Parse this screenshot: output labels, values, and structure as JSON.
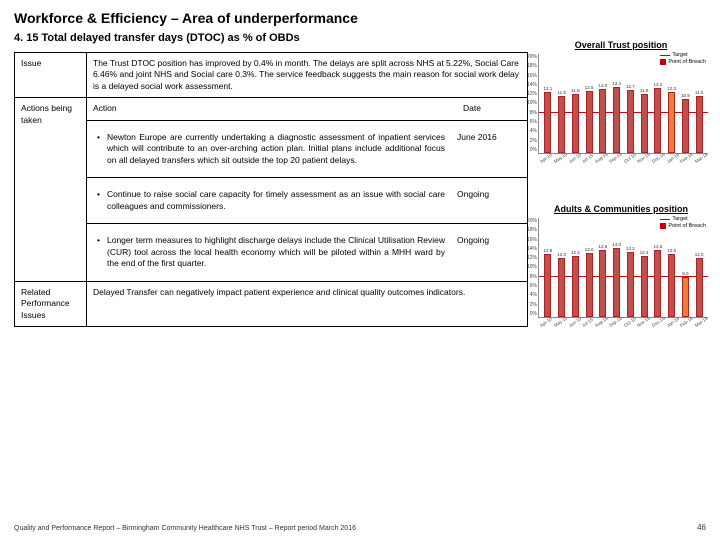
{
  "title": "Workforce & Efficiency – Area of underperformance",
  "subtitle": "4. 15 Total delayed transfer days (DTOC) as % of OBDs",
  "table": {
    "issue_label": "Issue",
    "issue_text": "The Trust DTOC position has improved by 0.4% in month. The delays are split across NHS at 5.22%, Social Care 6.46% and joint NHS and Social care 0.3%. The service feedback suggests the main reason for social work delay is a delayed social work assessment.",
    "actions_label": "Actions being taken",
    "action_header": "Action",
    "date_header": "Date",
    "actions": [
      {
        "text": "Newton Europe are currently undertaking a diagnostic assessment of inpatient services which will contribute to an over-arching action plan. Initial plans include additional focus on all delayed transfers which sit outside the top 20 patient delays.",
        "date": "June 2016"
      },
      {
        "text": "Continue to raise social care capacity for timely assessment as an issue with social care colleagues and commissioners.",
        "date": "Ongoing"
      },
      {
        "text": "Longer term measures to highlight discharge delays include the Clinical Utilisation Review (CUR) tool across the local health economy which will be piloted within a MHH ward by the end of the first quarter.",
        "date": "Ongoing"
      }
    ],
    "related_label": "Related Performance Issues",
    "related_text": "Delayed Transfer can negatively impact patient experience and clinical quality outcomes indicators."
  },
  "charts": {
    "legend_target": "Target",
    "legend_series": "Point of Breach",
    "chart1": {
      "title": "Overall Trust position",
      "target_pct": 40,
      "yticks": [
        "20%",
        "18%",
        "16%",
        "14%",
        "12%",
        "10%",
        "8%",
        "6%",
        "4%",
        "2%",
        "0%"
      ],
      "months": [
        "Apr-15",
        "May-15",
        "Jun-15",
        "Jul-15",
        "Aug-15",
        "Sep-15",
        "Oct-15",
        "Nov-15",
        "Dec-15",
        "Jan-16",
        "Feb-16",
        "Mar-16"
      ],
      "values": [
        62,
        58,
        60,
        63,
        65,
        67,
        64,
        60,
        66,
        62,
        55,
        58
      ],
      "labels": [
        "12.1",
        "11.5",
        "11.9",
        "12.5",
        "13.0",
        "13.4",
        "12.7",
        "11.9",
        "13.2",
        "12.3",
        "10.9",
        "11.5"
      ],
      "colors": [
        "#c0504d",
        "#c0504d",
        "#c0504d",
        "#c0504d",
        "#c0504d",
        "#c0504d",
        "#c0504d",
        "#c0504d",
        "#c0504d",
        "#ed7d31",
        "#c0504d",
        "#c0504d"
      ]
    },
    "chart2": {
      "title": "Adults & Communities position",
      "target_pct": 40,
      "yticks": [
        "20%",
        "18%",
        "16%",
        "14%",
        "12%",
        "10%",
        "8%",
        "6%",
        "4%",
        "2%",
        "0%"
      ],
      "months": [
        "Apr-15",
        "May-15",
        "Jun-15",
        "Jul-15",
        "Aug-15",
        "Sep-15",
        "Oct-15",
        "Nov-15",
        "Dec-15",
        "Jan-16",
        "Feb-16",
        "Mar-16"
      ],
      "values": [
        64,
        60,
        62,
        65,
        68,
        70,
        66,
        62,
        68,
        64,
        40,
        60
      ],
      "labels": [
        "12.8",
        "12.0",
        "12.4",
        "13.0",
        "13.6",
        "14.0",
        "13.2",
        "12.4",
        "13.6",
        "12.8",
        "8.0",
        "12.0"
      ],
      "colors": [
        "#c0504d",
        "#c0504d",
        "#c0504d",
        "#c0504d",
        "#c0504d",
        "#c0504d",
        "#c0504d",
        "#c0504d",
        "#c0504d",
        "#c0504d",
        "#ed7d31",
        "#c0504d"
      ]
    }
  },
  "footer": "Quality and Performance Report – Birmingham Community Healthcare NHS Trust – Report period March 2016",
  "page_num": "46"
}
